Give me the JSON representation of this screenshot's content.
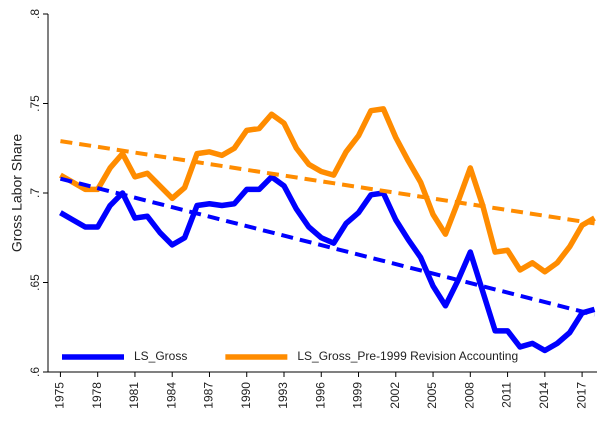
{
  "chart_data": {
    "type": "line",
    "ylabel": "Gross Labor Share",
    "x": [
      1975,
      1976,
      1977,
      1978,
      1979,
      1980,
      1981,
      1982,
      1983,
      1984,
      1985,
      1986,
      1987,
      1988,
      1989,
      1990,
      1991,
      1992,
      1993,
      1994,
      1995,
      1996,
      1997,
      1998,
      1999,
      2000,
      2001,
      2002,
      2003,
      2004,
      2005,
      2006,
      2007,
      2008,
      2009,
      2010,
      2011,
      2012,
      2013,
      2014,
      2015,
      2016,
      2017,
      2018
    ],
    "series": [
      {
        "name": "LS_Gross",
        "color": "#0000ff",
        "values": [
          0.689,
          0.685,
          0.681,
          0.681,
          0.693,
          0.7,
          0.686,
          0.687,
          0.678,
          0.671,
          0.675,
          0.693,
          0.694,
          0.693,
          0.694,
          0.702,
          0.702,
          0.709,
          0.704,
          0.691,
          0.681,
          0.675,
          0.672,
          0.683,
          0.689,
          0.699,
          0.7,
          0.685,
          0.674,
          0.664,
          0.648,
          0.637,
          0.651,
          0.667,
          0.645,
          0.623,
          0.623,
          0.614,
          0.616,
          0.612,
          0.616,
          0.622,
          0.633,
          0.635
        ]
      },
      {
        "name": "LS_Gross_Pre-1999 Revision Accounting",
        "color": "#ff8c00",
        "values": [
          0.71,
          0.706,
          0.702,
          0.702,
          0.714,
          0.722,
          0.709,
          0.711,
          0.704,
          0.697,
          0.703,
          0.722,
          0.723,
          0.721,
          0.725,
          0.735,
          0.736,
          0.744,
          0.739,
          0.725,
          0.716,
          0.712,
          0.71,
          0.723,
          0.732,
          0.746,
          0.747,
          0.731,
          0.718,
          0.706,
          0.688,
          0.677,
          0.695,
          0.714,
          0.693,
          0.667,
          0.668,
          0.657,
          0.661,
          0.656,
          0.661,
          0.67,
          0.682,
          0.686
        ]
      }
    ],
    "trend_lines": [
      {
        "color": "#0000ff",
        "x": [
          1975,
          2018
        ],
        "values": [
          0.708,
          0.632
        ],
        "dashed": true
      },
      {
        "color": "#ff8c00",
        "x": [
          1975,
          2018
        ],
        "values": [
          0.729,
          0.683
        ],
        "dashed": true
      }
    ],
    "xlim": [
      1974,
      2018.2
    ],
    "ylim": [
      0.6,
      0.8
    ],
    "xticks": [
      1975,
      1978,
      1981,
      1984,
      1987,
      1990,
      1993,
      1996,
      1999,
      2002,
      2005,
      2008,
      2011,
      2014,
      2017
    ],
    "yticks": [
      {
        "value": 0.6,
        "label": ".6"
      },
      {
        "value": 0.65,
        "label": ".65"
      },
      {
        "value": 0.7,
        "label": ".7"
      },
      {
        "value": 0.75,
        "label": ".75"
      },
      {
        "value": 0.8,
        "label": ".8"
      }
    ],
    "legend": "bottom"
  }
}
